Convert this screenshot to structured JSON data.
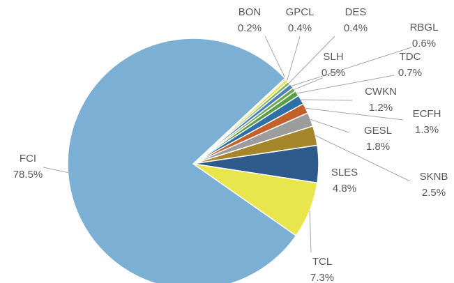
{
  "chart_data": {
    "type": "pie",
    "categories": [
      "BON",
      "GPCL",
      "DES",
      "RBGL",
      "SLH",
      "TDC",
      "CWKN",
      "ECFH",
      "GESL",
      "SKNB",
      "SLES",
      "TCL",
      "FCI"
    ],
    "values": [
      0.2,
      0.4,
      0.4,
      0.6,
      0.5,
      0.7,
      1.2,
      1.3,
      1.8,
      2.5,
      4.8,
      7.3,
      78.5
    ],
    "value_labels": [
      "0.2%",
      "0.4%",
      "0.4%",
      "0.6%",
      "0.5%",
      "0.7%",
      "1.2%",
      "1.3%",
      "1.8%",
      "2.5%",
      "4.8%",
      "7.3%",
      "78.5%"
    ],
    "colors": [
      "#f4c88a",
      "#e6e24e",
      "#7bb661",
      "#4f7fb8",
      "#6aa84f",
      "#5a9e46",
      "#2e6fa8",
      "#c2622a",
      "#9c9c9c",
      "#a5862a",
      "#2e5a8c",
      "#e8e64c",
      "#7bafd4"
    ]
  }
}
